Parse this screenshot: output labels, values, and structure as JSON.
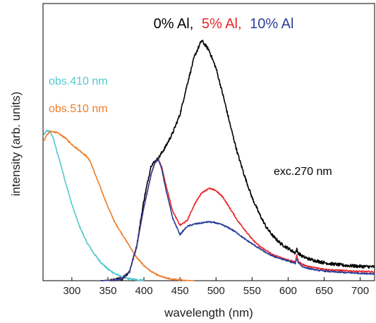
{
  "chart_data": {
    "type": "line",
    "title_parts": [
      {
        "text": "0% Al,",
        "color": "#000000"
      },
      {
        "text": "5% Al,",
        "color": "#e8262a"
      },
      {
        "text": "10% Al",
        "color": "#2b3f98"
      }
    ],
    "xlabel": "wavelength (nm)",
    "ylabel": "intensity (arb. units)",
    "xlim": [
      260,
      720
    ],
    "ylim": [
      0,
      1.2
    ],
    "xticks": [
      300,
      350,
      400,
      450,
      500,
      550,
      600,
      650,
      700
    ],
    "grid": false,
    "y_tick_labels": false,
    "annotations": [
      {
        "text": "obs.410 nm",
        "color": "#55c8d0",
        "x": 268,
        "y": 0.94
      },
      {
        "text": "obs.510 nm",
        "color": "#ee7d2b",
        "x": 268,
        "y": 0.84
      },
      {
        "text": "exc.270 nm",
        "color": "#000000",
        "x": 588,
        "y": 0.49
      }
    ],
    "series": [
      {
        "group": "excitation",
        "color": "#55c8d0",
        "noise": 0.004,
        "x": [
          260,
          263,
          266,
          270,
          275,
          280,
          285,
          290,
          300,
          310,
          320,
          330,
          340,
          350,
          360,
          370,
          380,
          390,
          400
        ],
        "y": [
          0.625,
          0.64,
          0.65,
          0.645,
          0.61,
          0.55,
          0.5,
          0.44,
          0.33,
          0.24,
          0.17,
          0.12,
          0.08,
          0.05,
          0.03,
          0.015,
          0.008,
          0.004,
          0.002
        ]
      },
      {
        "group": "excitation",
        "color": "#ee7d2b",
        "noise": 0.003,
        "x": [
          260,
          265,
          270,
          275,
          280,
          290,
          300,
          310,
          320,
          325,
          330,
          340,
          350,
          360,
          370,
          380,
          390,
          400,
          410,
          420,
          430,
          440,
          450,
          460,
          470
        ],
        "y": [
          0.6,
          0.63,
          0.645,
          0.645,
          0.64,
          0.62,
          0.59,
          0.565,
          0.54,
          0.52,
          0.48,
          0.4,
          0.32,
          0.25,
          0.2,
          0.15,
          0.1,
          0.065,
          0.04,
          0.022,
          0.012,
          0.006,
          0.003,
          0.001,
          0.0
        ]
      },
      {
        "group": "emission",
        "name": "0% Al",
        "color": "#000000",
        "noise": 0.007,
        "x": [
          340,
          360,
          370,
          380,
          390,
          400,
          410,
          420,
          430,
          440,
          450,
          460,
          470,
          480,
          490,
          500,
          510,
          520,
          530,
          540,
          550,
          560,
          570,
          580,
          590,
          600,
          610,
          612,
          614,
          620,
          630,
          640,
          650,
          660,
          670,
          680,
          690,
          700,
          710,
          720
        ],
        "y": [
          0.0,
          0.003,
          0.01,
          0.04,
          0.15,
          0.35,
          0.5,
          0.53,
          0.58,
          0.64,
          0.72,
          0.85,
          0.97,
          1.04,
          1.0,
          0.92,
          0.8,
          0.67,
          0.55,
          0.45,
          0.36,
          0.29,
          0.23,
          0.19,
          0.16,
          0.14,
          0.12,
          0.135,
          0.12,
          0.105,
          0.093,
          0.085,
          0.078,
          0.073,
          0.069,
          0.066,
          0.064,
          0.062,
          0.061,
          0.06
        ]
      },
      {
        "group": "emission",
        "name": "5% Al",
        "color": "#e8262a",
        "noise": 0.003,
        "x": [
          340,
          360,
          370,
          380,
          390,
          400,
          410,
          415,
          420,
          425,
          430,
          440,
          450,
          460,
          470,
          480,
          490,
          500,
          510,
          520,
          530,
          540,
          550,
          560,
          570,
          580,
          590,
          600,
          610,
          612,
          614,
          620,
          630,
          640,
          650,
          660,
          680,
          700,
          720
        ],
        "y": [
          0.0,
          0.003,
          0.01,
          0.04,
          0.15,
          0.32,
          0.46,
          0.51,
          0.525,
          0.49,
          0.42,
          0.3,
          0.24,
          0.26,
          0.33,
          0.38,
          0.4,
          0.39,
          0.36,
          0.31,
          0.26,
          0.22,
          0.18,
          0.15,
          0.13,
          0.11,
          0.1,
          0.09,
          0.08,
          0.11,
          0.085,
          0.07,
          0.06,
          0.055,
          0.05,
          0.047,
          0.043,
          0.04,
          0.038
        ]
      },
      {
        "group": "emission",
        "name": "10% Al",
        "color": "#2b3f98",
        "noise": 0.003,
        "x": [
          340,
          360,
          370,
          380,
          390,
          400,
          410,
          415,
          420,
          425,
          430,
          440,
          450,
          460,
          470,
          480,
          490,
          500,
          510,
          520,
          530,
          540,
          550,
          560,
          570,
          580,
          590,
          600,
          610,
          612,
          614,
          620,
          630,
          640,
          650,
          660,
          680,
          700,
          720
        ],
        "y": [
          0.0,
          0.003,
          0.01,
          0.04,
          0.15,
          0.32,
          0.46,
          0.51,
          0.525,
          0.48,
          0.4,
          0.27,
          0.2,
          0.235,
          0.245,
          0.25,
          0.255,
          0.25,
          0.24,
          0.225,
          0.205,
          0.18,
          0.16,
          0.14,
          0.12,
          0.105,
          0.095,
          0.085,
          0.075,
          0.095,
          0.08,
          0.06,
          0.052,
          0.046,
          0.042,
          0.039,
          0.035,
          0.032,
          0.03
        ]
      }
    ]
  }
}
